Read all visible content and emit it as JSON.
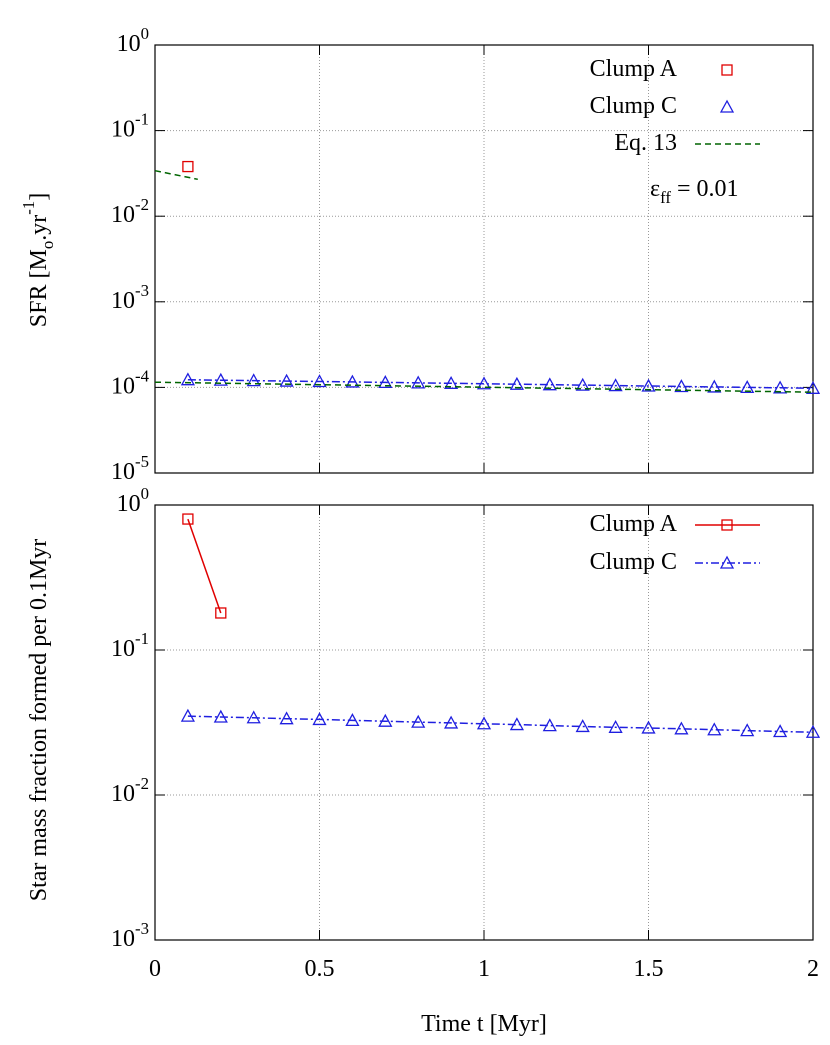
{
  "chart_data": [
    {
      "type": "line",
      "ylabel": "SFR [M_o.yr^-1]",
      "log_y": true,
      "grid": true,
      "legend": "upper right",
      "xlim": [
        0,
        2
      ],
      "xticks": [
        0,
        0.5,
        1,
        1.5,
        2
      ],
      "show_xtick_labels": false,
      "ylim": [
        1e-05,
        1
      ],
      "yticks": [
        {
          "value": 1,
          "label": "10^0"
        },
        {
          "value": 0.1,
          "label": "10^-1"
        },
        {
          "value": 0.01,
          "label": "10^-2"
        },
        {
          "value": 0.001,
          "label": "10^-3"
        },
        {
          "value": 0.0001,
          "label": "10^-4"
        },
        {
          "value": 1e-05,
          "label": "10^-5"
        }
      ],
      "annotations": [
        "ε_ff = 0.01"
      ],
      "series": [
        {
          "name": "Clump A",
          "color": "#e00000",
          "marker": "square",
          "lines": false,
          "dash": "solid",
          "x": [
            0.1
          ],
          "values": [
            0.038
          ]
        },
        {
          "name": "Clump C",
          "color": "#1f1fe0",
          "marker": "triangle",
          "lines": true,
          "legend_line": false,
          "dash": "dashdot",
          "x": [
            0.1,
            0.2,
            0.3,
            0.4,
            0.5,
            0.6,
            0.7,
            0.8,
            0.9,
            1.0,
            1.1,
            1.2,
            1.3,
            1.4,
            1.5,
            1.6,
            1.7,
            1.8,
            1.9,
            2.0
          ],
          "values": [
            0.000123,
            0.0001215,
            0.00012,
            0.0001186,
            0.0001172,
            0.0001158,
            0.0001144,
            0.000113,
            0.0001116,
            0.0001103,
            0.0001089,
            0.0001076,
            0.0001063,
            0.000105,
            0.0001038,
            0.0001025,
            0.0001013,
            0.0001,
            9.88e-05,
            9.76e-05
          ]
        },
        {
          "name": "Eq. 13",
          "color": "#006400",
          "marker": null,
          "lines": true,
          "dash": "dashed",
          "x": [
            0,
            0.13,
            null,
            0,
            2
          ],
          "values": [
            0.034,
            0.027,
            null,
            0.000115,
            8.8e-05
          ]
        }
      ]
    },
    {
      "type": "line",
      "ylabel": "Star mass fraction formed per 0.1Myr",
      "xlabel": "Time t [Myr]",
      "log_y": true,
      "grid": true,
      "legend": "upper right",
      "xlim": [
        0,
        2
      ],
      "xticks": [
        0,
        0.5,
        1,
        1.5,
        2
      ],
      "show_xtick_labels": true,
      "ylim": [
        0.001,
        1
      ],
      "yticks": [
        {
          "value": 1,
          "label": "10^0"
        },
        {
          "value": 0.1,
          "label": "10^-1"
        },
        {
          "value": 0.01,
          "label": "10^-2"
        },
        {
          "value": 0.001,
          "label": "10^-3"
        }
      ],
      "series": [
        {
          "name": "Clump A",
          "color": "#e00000",
          "marker": "square",
          "lines": true,
          "dash": "solid",
          "x": [
            0.1,
            0.2
          ],
          "values": [
            0.8,
            0.18
          ]
        },
        {
          "name": "Clump C",
          "color": "#1f1fe0",
          "marker": "triangle",
          "lines": true,
          "dash": "dashdot",
          "x": [
            0.1,
            0.2,
            0.3,
            0.4,
            0.5,
            0.6,
            0.7,
            0.8,
            0.9,
            1.0,
            1.1,
            1.2,
            1.3,
            1.4,
            1.5,
            1.6,
            1.7,
            1.8,
            1.9,
            2.0
          ],
          "values": [
            0.035,
            0.0345,
            0.0341,
            0.0336,
            0.0332,
            0.0327,
            0.0323,
            0.0318,
            0.0314,
            0.031,
            0.0306,
            0.0301,
            0.0297,
            0.0293,
            0.029,
            0.0286,
            0.0282,
            0.0278,
            0.0274,
            0.0271
          ]
        }
      ]
    }
  ]
}
